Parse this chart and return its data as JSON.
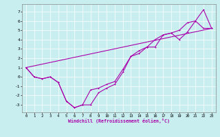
{
  "bg_color": "#c8eef0",
  "grid_color": "#ffffff",
  "line_color": "#aa00aa",
  "xlabel": "Windchill (Refroidissement éolien,°C)",
  "xlim": [
    -0.5,
    23.5
  ],
  "ylim": [
    -3.8,
    7.8
  ],
  "yticks": [
    -3,
    -2,
    -1,
    0,
    1,
    2,
    3,
    4,
    5,
    6,
    7
  ],
  "xticks": [
    0,
    1,
    2,
    3,
    4,
    5,
    6,
    7,
    8,
    9,
    10,
    11,
    12,
    13,
    14,
    15,
    16,
    17,
    18,
    19,
    20,
    21,
    22,
    23
  ],
  "line1_x": [
    0,
    1,
    2,
    3,
    4,
    5,
    6,
    7,
    8,
    9,
    10,
    11,
    12,
    13,
    14,
    15,
    16,
    17,
    18,
    19,
    20,
    21,
    22,
    23
  ],
  "line1_y": [
    1.0,
    0.0,
    -0.2,
    0.0,
    -0.6,
    -2.6,
    -3.3,
    -3.0,
    -3.0,
    -1.7,
    -1.2,
    -0.8,
    0.5,
    2.2,
    2.5,
    3.2,
    3.2,
    4.5,
    4.7,
    4.0,
    4.8,
    6.0,
    7.2,
    5.2
  ],
  "line2_x": [
    0,
    1,
    2,
    3,
    4,
    5,
    6,
    7,
    8,
    9,
    10,
    11,
    12,
    13,
    14,
    15,
    16,
    17,
    18,
    19,
    20,
    21,
    22,
    23
  ],
  "line2_y": [
    1.0,
    0.0,
    -0.2,
    0.0,
    -0.6,
    -2.6,
    -3.3,
    -3.0,
    -1.4,
    -1.2,
    -0.8,
    -0.5,
    0.8,
    2.2,
    2.8,
    3.2,
    4.0,
    4.5,
    4.7,
    5.0,
    5.8,
    6.0,
    5.2,
    5.2
  ],
  "line3_x": [
    0,
    23
  ],
  "line3_y": [
    1.0,
    5.2
  ]
}
